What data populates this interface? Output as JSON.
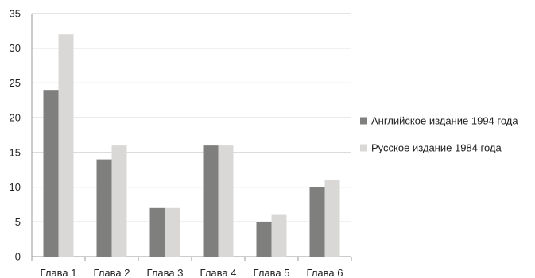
{
  "chart_data": {
    "type": "bar",
    "title": "",
    "xlabel": "",
    "ylabel": "",
    "categories": [
      "Глава 1",
      "Глава 2",
      "Глава 3",
      "Глава 4",
      "Глава 5",
      "Глава 6"
    ],
    "series": [
      {
        "name": "Английское издание 1994 года",
        "color": "#7f7f7e",
        "values": [
          24,
          14,
          7,
          16,
          5,
          10
        ]
      },
      {
        "name": "Русское издание 1984 года",
        "color": "#d9d8d6",
        "values": [
          32,
          16,
          7,
          16,
          6,
          11
        ]
      }
    ],
    "ylim": [
      0,
      35
    ],
    "yticks": [
      0,
      5,
      10,
      15,
      20,
      25,
      30,
      35
    ],
    "grid": "horizontal",
    "legend_position": "right"
  }
}
